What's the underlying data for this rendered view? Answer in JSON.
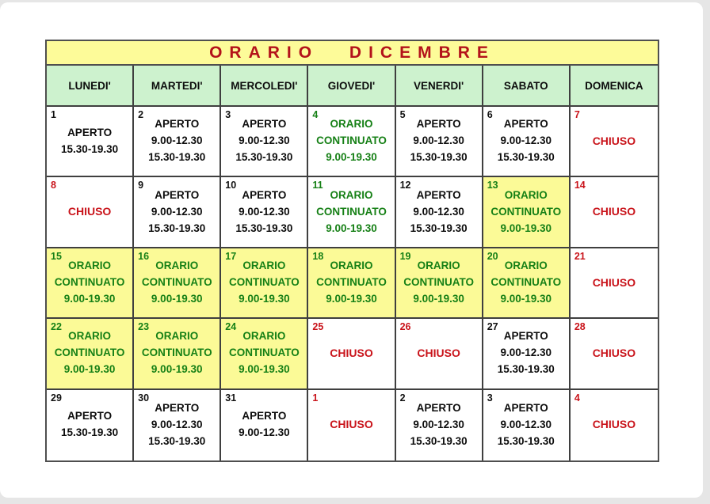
{
  "calendar": {
    "title": "ORARIO DICEMBRE",
    "colors": {
      "title_bg": "#FDFB99",
      "title_text": "#B3121A",
      "header_bg": "#CDF2CE",
      "highlight_bg": "#FBFA97",
      "closed_text": "#C9131A",
      "continuous_text": "#168016",
      "open_text": "#0D0D0D"
    },
    "day_headers": [
      "LUNEDI'",
      "MARTEDI'",
      "MERCOLEDI'",
      "GIOVEDI'",
      "VENERDI'",
      "SABATO",
      "DOMENICA"
    ],
    "weeks": [
      [
        {
          "day": "1",
          "type": "open",
          "highlight": false,
          "lines": [
            "APERTO",
            "15.30-19.30"
          ]
        },
        {
          "day": "2",
          "type": "open",
          "highlight": false,
          "lines": [
            "APERTO",
            "9.00-12.30",
            "15.30-19.30"
          ]
        },
        {
          "day": "3",
          "type": "open",
          "highlight": false,
          "lines": [
            "APERTO",
            "9.00-12.30",
            "15.30-19.30"
          ]
        },
        {
          "day": "4",
          "type": "continuous",
          "highlight": false,
          "lines": [
            "ORARIO",
            "CONTINUATO",
            "9.00-19.30"
          ]
        },
        {
          "day": "5",
          "type": "open",
          "highlight": false,
          "lines": [
            "APERTO",
            "9.00-12.30",
            "15.30-19.30"
          ]
        },
        {
          "day": "6",
          "type": "open",
          "highlight": false,
          "lines": [
            "APERTO",
            "9.00-12.30",
            "15.30-19.30"
          ]
        },
        {
          "day": "7",
          "type": "closed",
          "highlight": false,
          "lines": [
            "CHIUSO"
          ]
        }
      ],
      [
        {
          "day": "8",
          "type": "closed",
          "highlight": false,
          "lines": [
            "CHIUSO"
          ]
        },
        {
          "day": "9",
          "type": "open",
          "highlight": false,
          "lines": [
            "APERTO",
            "9.00-12.30",
            "15.30-19.30"
          ]
        },
        {
          "day": "10",
          "type": "open",
          "highlight": false,
          "lines": [
            "APERTO",
            "9.00-12.30",
            "15.30-19.30"
          ]
        },
        {
          "day": "11",
          "type": "continuous",
          "highlight": false,
          "lines": [
            "ORARIO",
            "CONTINUATO",
            "9.00-19.30"
          ]
        },
        {
          "day": "12",
          "type": "open",
          "highlight": false,
          "lines": [
            "APERTO",
            "9.00-12.30",
            "15.30-19.30"
          ]
        },
        {
          "day": "13",
          "type": "continuous",
          "highlight": true,
          "lines": [
            "ORARIO",
            "CONTINUATO",
            "9.00-19.30"
          ]
        },
        {
          "day": "14",
          "type": "closed",
          "highlight": false,
          "lines": [
            "CHIUSO"
          ]
        }
      ],
      [
        {
          "day": "15",
          "type": "continuous",
          "highlight": true,
          "lines": [
            "ORARIO",
            "CONTINUATO",
            "9.00-19.30"
          ]
        },
        {
          "day": "16",
          "type": "continuous",
          "highlight": true,
          "lines": [
            "ORARIO",
            "CONTINUATO",
            "9.00-19.30"
          ]
        },
        {
          "day": "17",
          "type": "continuous",
          "highlight": true,
          "lines": [
            "ORARIO",
            "CONTINUATO",
            "9.00-19.30"
          ]
        },
        {
          "day": "18",
          "type": "continuous",
          "highlight": true,
          "lines": [
            "ORARIO",
            "CONTINUATO",
            "9.00-19.30"
          ]
        },
        {
          "day": "19",
          "type": "continuous",
          "highlight": true,
          "lines": [
            "ORARIO",
            "CONTINUATO",
            "9.00-19.30"
          ]
        },
        {
          "day": "20",
          "type": "continuous",
          "highlight": true,
          "lines": [
            "ORARIO",
            "CONTINUATO",
            "9.00-19.30"
          ]
        },
        {
          "day": "21",
          "type": "closed",
          "highlight": false,
          "lines": [
            "CHIUSO"
          ]
        }
      ],
      [
        {
          "day": "22",
          "type": "continuous",
          "highlight": true,
          "lines": [
            "ORARIO",
            "CONTINUATO",
            "9.00-19.30"
          ]
        },
        {
          "day": "23",
          "type": "continuous",
          "highlight": true,
          "lines": [
            "ORARIO",
            "CONTINUATO",
            "9.00-19.30"
          ]
        },
        {
          "day": "24",
          "type": "continuous",
          "highlight": true,
          "lines": [
            "ORARIO",
            "CONTINUATO",
            "9.00-19.30"
          ]
        },
        {
          "day": "25",
          "type": "closed",
          "highlight": false,
          "lines": [
            "CHIUSO"
          ]
        },
        {
          "day": "26",
          "type": "closed",
          "highlight": false,
          "lines": [
            "CHIUSO"
          ]
        },
        {
          "day": "27",
          "type": "open",
          "highlight": false,
          "lines": [
            "APERTO",
            "9.00-12.30",
            "15.30-19.30"
          ]
        },
        {
          "day": "28",
          "type": "closed",
          "highlight": false,
          "lines": [
            "CHIUSO"
          ]
        }
      ],
      [
        {
          "day": "29",
          "type": "open",
          "highlight": false,
          "lines": [
            "APERTO",
            "15.30-19.30"
          ]
        },
        {
          "day": "30",
          "type": "open",
          "highlight": false,
          "lines": [
            "APERTO",
            "9.00-12.30",
            "15.30-19.30"
          ]
        },
        {
          "day": "31",
          "type": "open",
          "highlight": false,
          "lines": [
            "APERTO",
            "9.00-12.30"
          ]
        },
        {
          "day": "1",
          "type": "closed",
          "highlight": false,
          "lines": [
            "CHIUSO"
          ]
        },
        {
          "day": "2",
          "type": "open",
          "highlight": false,
          "lines": [
            "APERTO",
            "9.00-12.30",
            "15.30-19.30"
          ]
        },
        {
          "day": "3",
          "type": "open",
          "highlight": false,
          "lines": [
            "APERTO",
            "9.00-12.30",
            "15.30-19.30"
          ]
        },
        {
          "day": "4",
          "type": "closed",
          "highlight": false,
          "lines": [
            "CHIUSO"
          ]
        }
      ]
    ]
  }
}
